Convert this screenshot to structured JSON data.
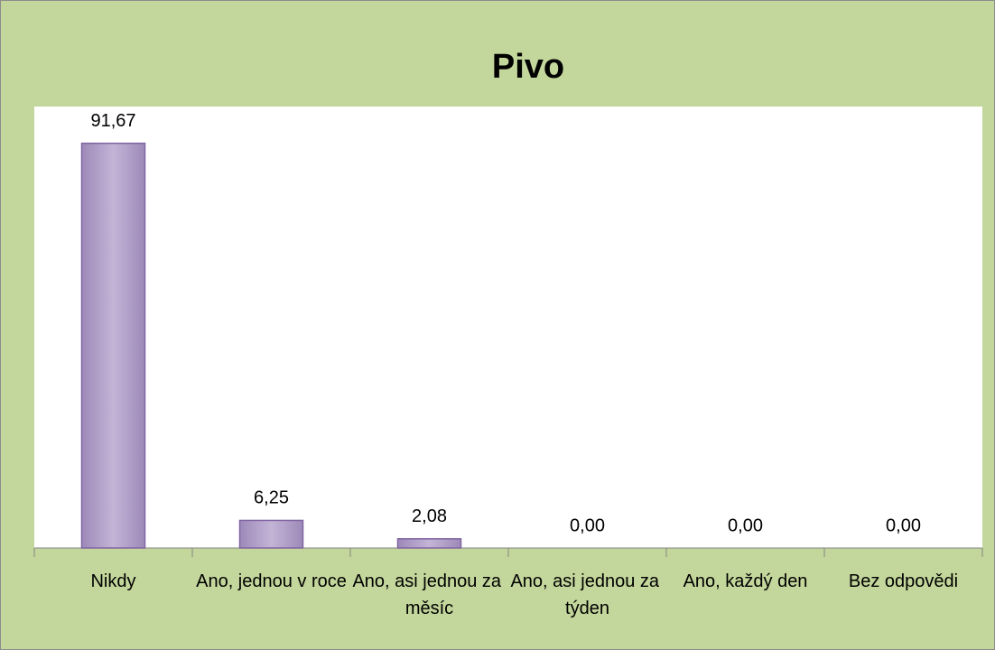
{
  "chart_data": {
    "type": "bar",
    "title": "Pivo",
    "categories": [
      "Nikdy",
      "Ano, jednou v roce",
      "Ano, asi jednou za měsíc",
      "Ano, asi jednou za týden",
      "Ano, každý den",
      "Bez odpovědi"
    ],
    "values": [
      91.67,
      6.25,
      2.08,
      0,
      0,
      0
    ],
    "value_labels": [
      "91,67",
      "6,25",
      "2,08",
      "0,00",
      "0,00",
      "0,00"
    ],
    "color": "#b3a2c7",
    "ylim": [
      0,
      100
    ]
  }
}
